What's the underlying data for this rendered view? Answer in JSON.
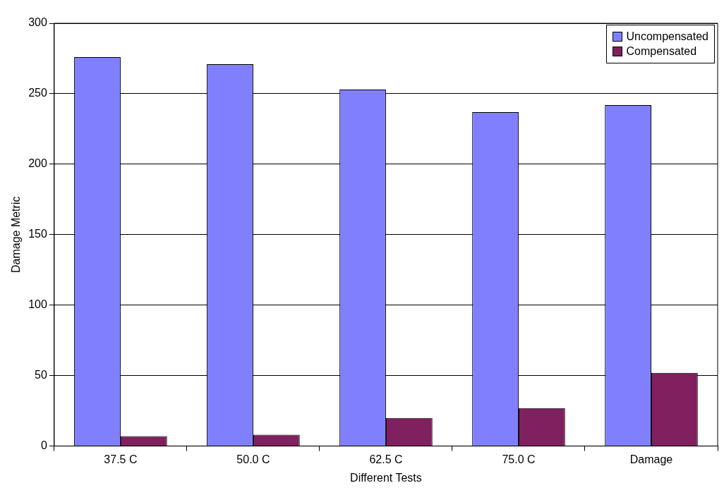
{
  "chart_data": {
    "type": "bar",
    "xlabel": "Different Tests",
    "ylabel": "Damage Metric",
    "categories": [
      "37.5 C",
      "50.0 C",
      "62.5 C",
      "75.0 C",
      "Damage"
    ],
    "series": [
      {
        "name": "Uncompensated",
        "color": "#8080ff",
        "values": [
          276,
          271,
          253,
          237,
          242
        ]
      },
      {
        "name": "Compensated",
        "color": "#80205f",
        "values": [
          7,
          8,
          20,
          27,
          52
        ]
      }
    ],
    "ylim": [
      0,
      300
    ],
    "yticks": [
      0,
      50,
      100,
      150,
      200,
      250,
      300
    ],
    "grid": "y",
    "legend": "top right"
  }
}
